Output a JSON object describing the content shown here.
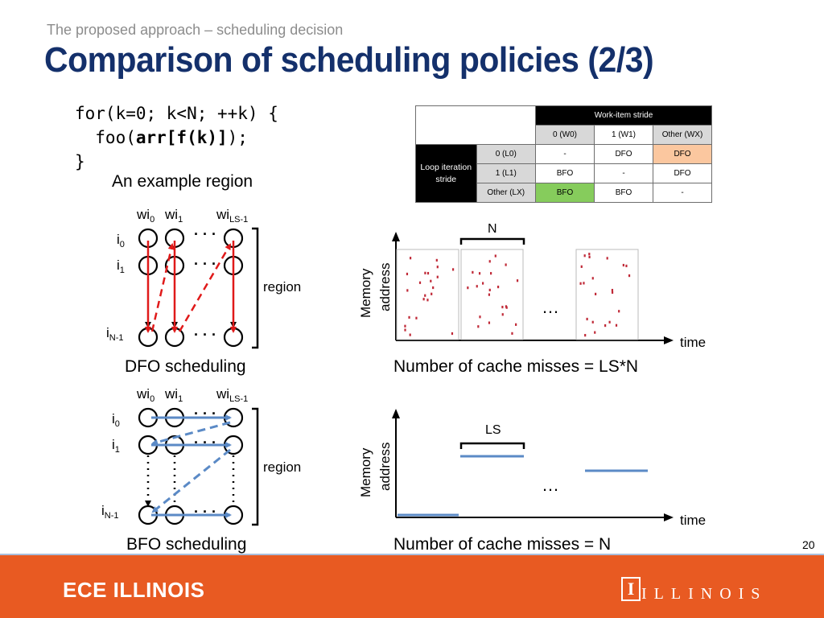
{
  "header": {
    "subtitle": "The proposed approach – scheduling decision",
    "title": "Comparison of scheduling policies (2/3)"
  },
  "code": {
    "line1": "for(k=0; k<N; ++k) {",
    "line2_pre": "  foo(",
    "line2_bold": "arr[f(k)]",
    "line2_post": ");",
    "line3": "}",
    "caption": "An example region"
  },
  "stride_table": {
    "col_group": "Work-item stride",
    "row_group": "Loop iteration stride",
    "columns": [
      "0 (W0)",
      "1 (W1)",
      "Other (WX)"
    ],
    "rows": [
      {
        "label": "0 (L0)",
        "cells": [
          "-",
          "DFO",
          "DFO"
        ]
      },
      {
        "label": "1 (L1)",
        "cells": [
          "BFO",
          "-",
          "DFO"
        ]
      },
      {
        "label": "Other (LX)",
        "cells": [
          "BFO",
          "BFO",
          "-"
        ]
      }
    ]
  },
  "dfo": {
    "col_labels": [
      "wi",
      "wi",
      "wi"
    ],
    "col_subs": [
      "0",
      "1",
      "LS-1"
    ],
    "row_labels": [
      "i",
      "i",
      "i"
    ],
    "row_subs": [
      "0",
      "1",
      "N-1"
    ],
    "brace_label": "region",
    "caption": "DFO scheduling",
    "plot": {
      "ylabel_1": "Memory",
      "ylabel_2": "address",
      "xlabel": "time",
      "block_label": "N",
      "ellipsis": "…",
      "caption": "Number of cache misses = LS*N"
    }
  },
  "bfo": {
    "col_labels": [
      "wi",
      "wi",
      "wi"
    ],
    "col_subs": [
      "0",
      "1",
      "LS-1"
    ],
    "row_labels": [
      "i",
      "i",
      "i"
    ],
    "row_subs": [
      "0",
      "1",
      "N-1"
    ],
    "brace_label": "region",
    "caption": "BFO scheduling",
    "plot": {
      "ylabel_1": "Memory",
      "ylabel_2": "address",
      "xlabel": "time",
      "block_label": "LS",
      "ellipsis": "…",
      "caption": "Number of cache misses = N"
    }
  },
  "colors": {
    "dfo_arrow": "#e01a1a",
    "bfo_arrow": "#5b8ac6",
    "title": "#14306b",
    "footer": "#e85a22",
    "table_highlight_orange": "#fbc79f",
    "table_highlight_green": "#86cc5c"
  },
  "footer": {
    "left": "ECE ILLINOIS",
    "right": "ILLINOIS",
    "logo_letter": "I"
  },
  "page_number": "20"
}
